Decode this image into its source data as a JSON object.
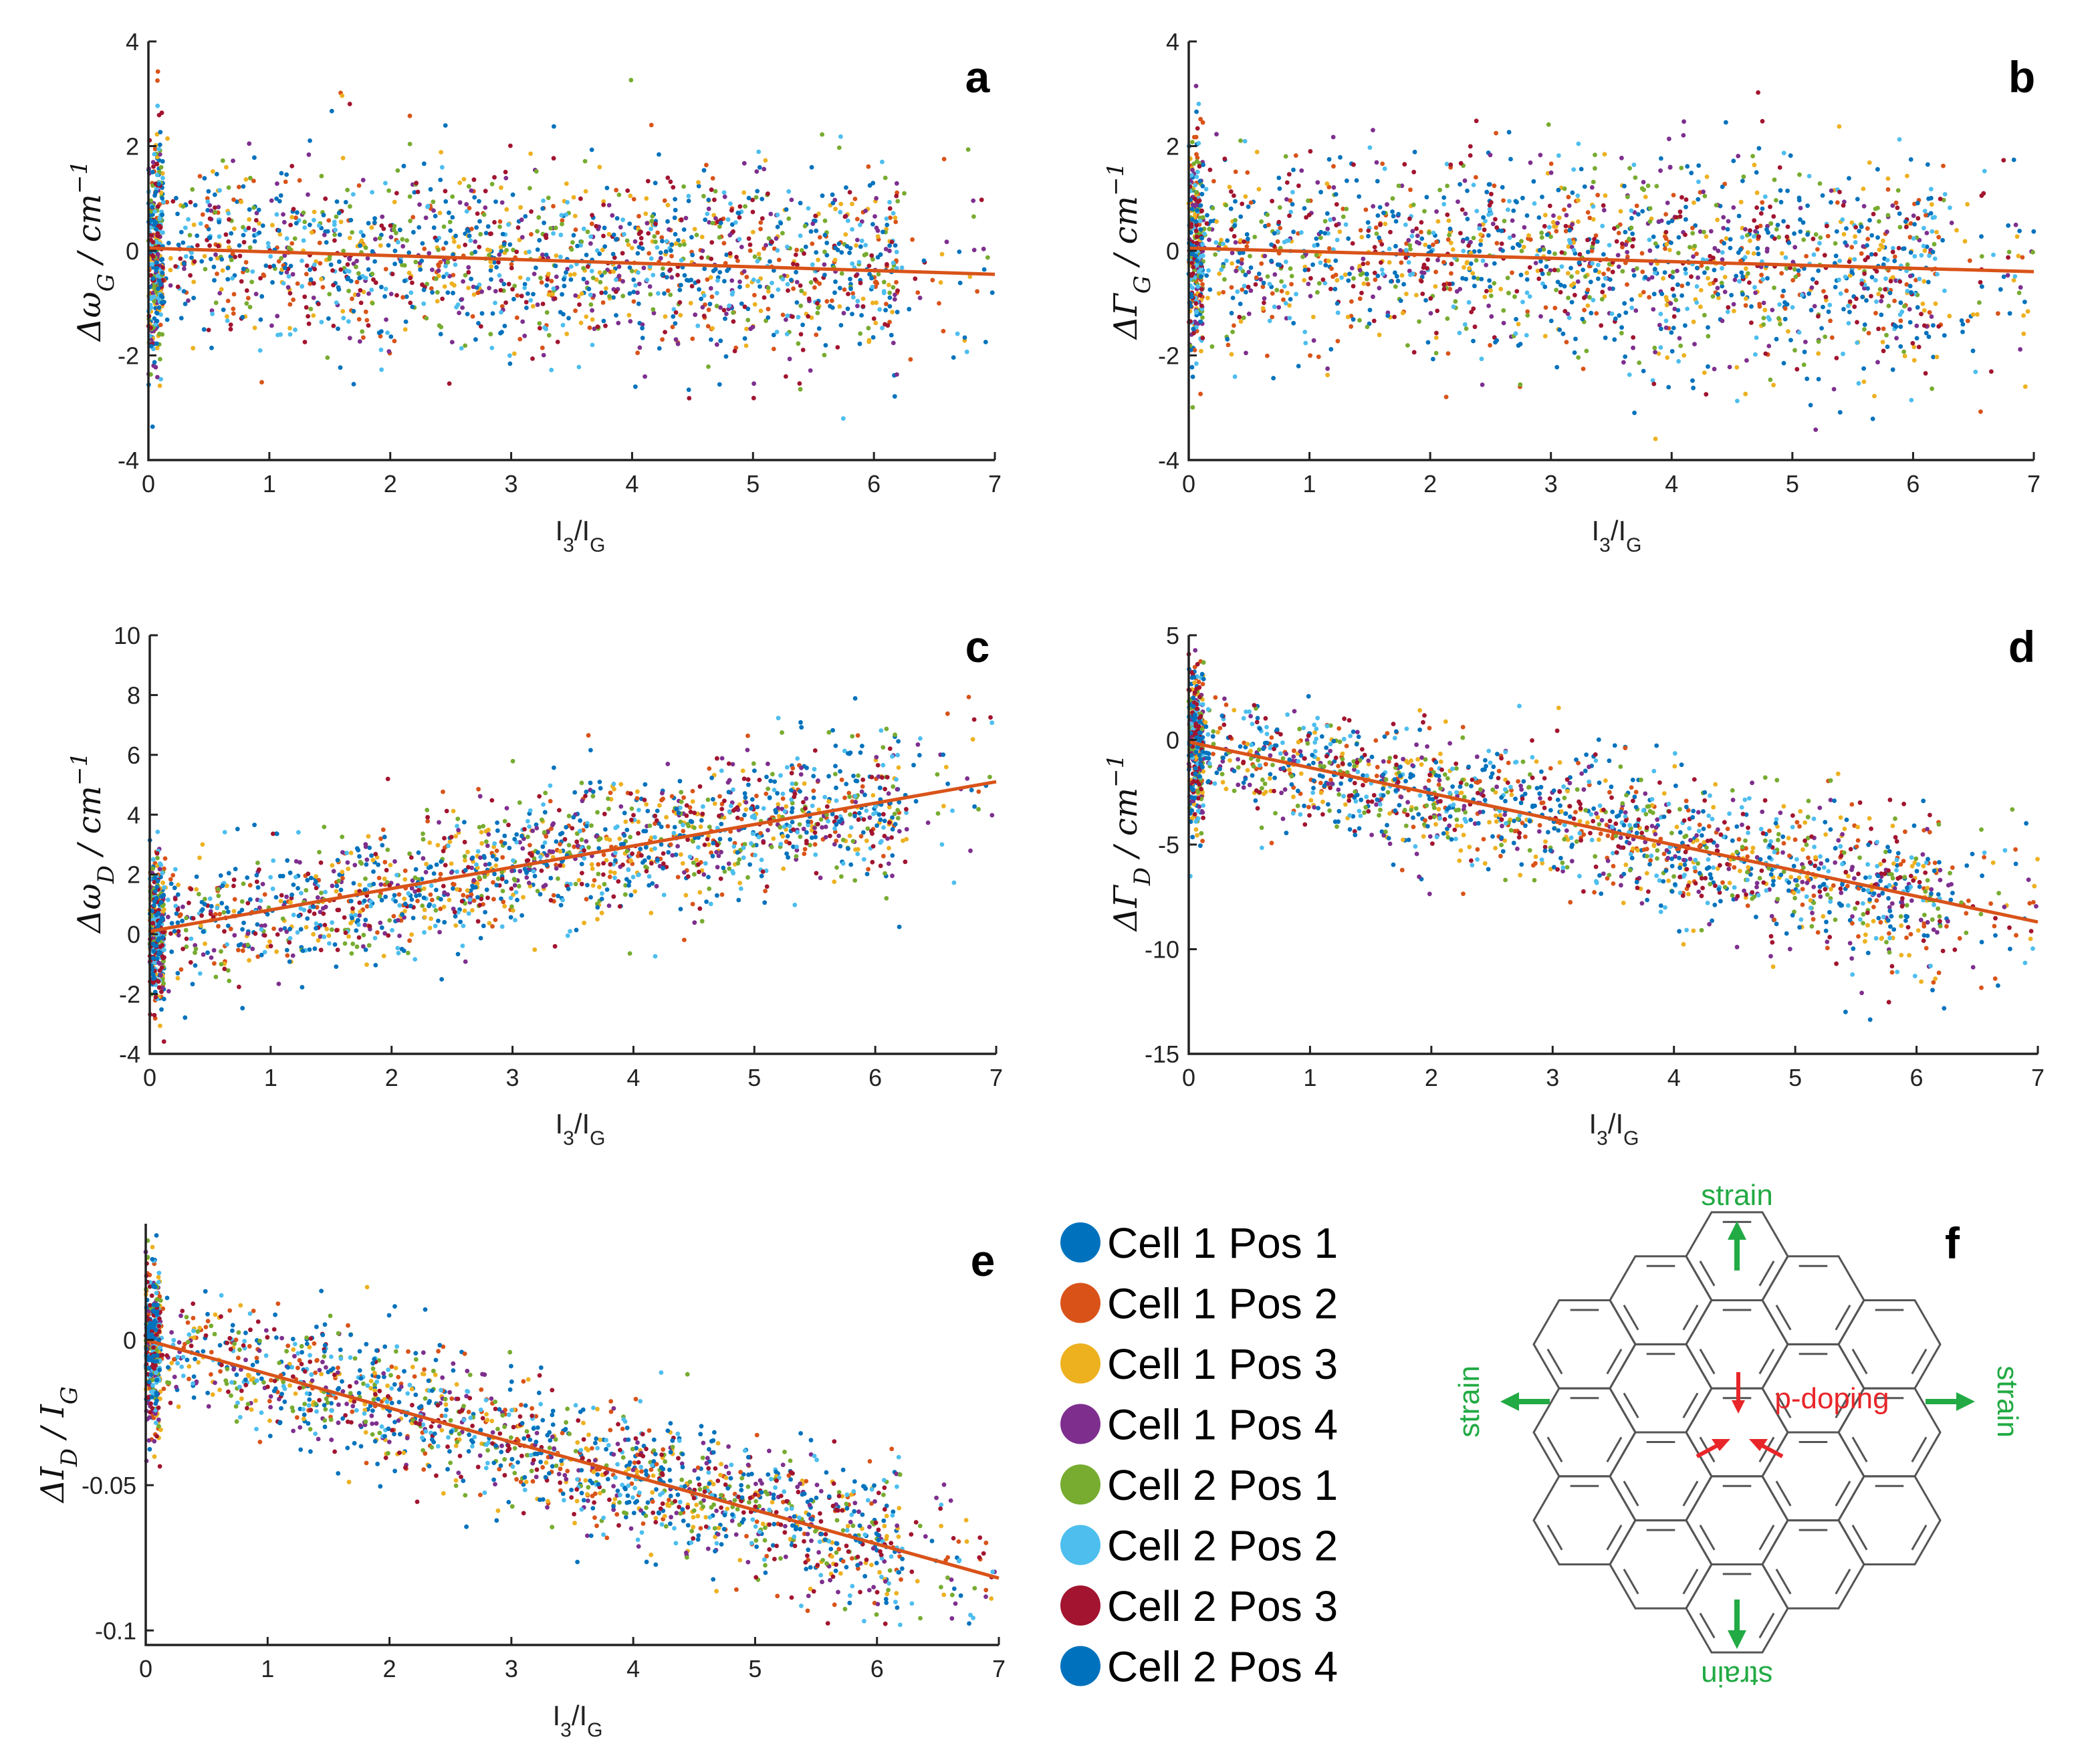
{
  "chart_data": [
    {
      "id": "a",
      "type": "scatter",
      "panel_letter": "a",
      "ylabel": "Δω_G / cm^-1",
      "xlabel": "I3/IG",
      "xlim": [
        0,
        7
      ],
      "ylim": [
        -4,
        4
      ],
      "xticks": [
        0,
        1,
        2,
        3,
        4,
        5,
        6,
        7
      ],
      "yticks": [
        -4,
        -2,
        0,
        2,
        4
      ],
      "trend": {
        "x": [
          0,
          7
        ],
        "y": [
          0.05,
          -0.45
        ]
      },
      "scatter_model": {
        "slope": -0.07,
        "intercept": 0.05,
        "spread": 0.85,
        "spread_growth": 0.02,
        "points_per_series": 260
      }
    },
    {
      "id": "b",
      "type": "scatter",
      "panel_letter": "b",
      "ylabel": "ΔΓ_G / cm^-1",
      "xlabel": "I3/IG",
      "xlim": [
        0,
        7
      ],
      "ylim": [
        -4,
        4
      ],
      "xticks": [
        0,
        1,
        2,
        3,
        4,
        5,
        6,
        7
      ],
      "yticks": [
        -4,
        -2,
        0,
        2,
        4
      ],
      "trend": {
        "x": [
          0,
          7
        ],
        "y": [
          0.05,
          -0.4
        ]
      },
      "scatter_model": {
        "slope": -0.064,
        "intercept": 0.05,
        "spread": 0.85,
        "spread_growth": 0.03,
        "points_per_series": 260
      }
    },
    {
      "id": "c",
      "type": "scatter",
      "panel_letter": "c",
      "ylabel": "Δω_D / cm^-1",
      "xlabel": "I3/IG",
      "xlim": [
        0,
        7
      ],
      "ylim": [
        -4,
        10
      ],
      "xticks": [
        0,
        1,
        2,
        3,
        4,
        5,
        6,
        7
      ],
      "yticks": [
        -4,
        -2,
        0,
        2,
        4,
        6,
        8,
        10
      ],
      "trend": {
        "x": [
          0,
          7
        ],
        "y": [
          0.1,
          5.1
        ]
      },
      "scatter_model": {
        "slope": 0.714,
        "intercept": 0.1,
        "spread": 1.0,
        "spread_growth": 0.04,
        "points_per_series": 260
      }
    },
    {
      "id": "d",
      "type": "scatter",
      "panel_letter": "d",
      "ylabel": "ΔΓ_D / cm^-1",
      "xlabel": "I3/IG",
      "xlim": [
        0,
        7
      ],
      "ylim": [
        -15,
        5
      ],
      "xticks": [
        0,
        1,
        2,
        3,
        4,
        5,
        6,
        7
      ],
      "yticks": [
        -15,
        -10,
        -5,
        0,
        5
      ],
      "trend": {
        "x": [
          0,
          7
        ],
        "y": [
          -0.1,
          -8.7
        ]
      },
      "scatter_model": {
        "slope": -1.23,
        "intercept": -0.1,
        "spread": 1.4,
        "spread_growth": 0.08,
        "points_per_series": 260
      }
    },
    {
      "id": "e",
      "type": "scatter",
      "panel_letter": "e",
      "ylabel": "ΔI_D / I_G",
      "xlabel": "I3/IG",
      "xlim": [
        0,
        7
      ],
      "ylim": [
        -0.105,
        0.04
      ],
      "xticks": [
        0,
        1,
        2,
        3,
        4,
        5,
        6,
        7
      ],
      "yticks": [
        -0.1,
        -0.05,
        0
      ],
      "ytick_labels": [
        "-0.1",
        "-0.05",
        "0"
      ],
      "trend": {
        "x": [
          0,
          7
        ],
        "y": [
          0.0,
          -0.082
        ]
      },
      "scatter_model": {
        "slope": -0.0117,
        "intercept": 0.0,
        "spread": 0.011,
        "spread_growth": 0.0003,
        "points_per_series": 260
      }
    }
  ],
  "series": [
    {
      "name": "Cell 1 Pos 1",
      "color": "#0072bd"
    },
    {
      "name": "Cell 1 Pos 2",
      "color": "#d95319"
    },
    {
      "name": "Cell 1 Pos 3",
      "color": "#edb120"
    },
    {
      "name": "Cell 1 Pos 4",
      "color": "#7e2f8e"
    },
    {
      "name": "Cell 2 Pos 1",
      "color": "#77ac30"
    },
    {
      "name": "Cell 2 Pos 2",
      "color": "#4dbeee"
    },
    {
      "name": "Cell 2 Pos 3",
      "color": "#a2142f"
    },
    {
      "name": "Cell 2 Pos 4",
      "color": "#0072bd"
    }
  ],
  "trend_color": "#d95319",
  "schematic": {
    "panel_letter": "f",
    "strain_label": "strain",
    "doping_label": "p-doping",
    "strain_color": "#22aa44",
    "doping_color": "#e8262a"
  }
}
